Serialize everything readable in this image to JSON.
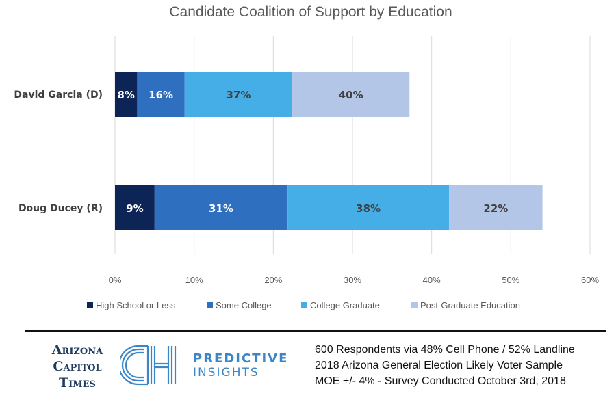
{
  "chart_data": {
    "type": "bar",
    "orientation": "horizontal",
    "stacked": true,
    "title": "Candidate Coalition of Support by Education",
    "categories": [
      "David Garcia (D)",
      "Doug Ducey (R)"
    ],
    "series": [
      {
        "name": "High School or Less",
        "values": [
          2.8,
          5.0
        ],
        "labels": [
          "8%",
          "9%"
        ],
        "color": "#0d2457"
      },
      {
        "name": "Some College",
        "values": [
          6.0,
          16.8
        ],
        "labels": [
          "16%",
          "31%"
        ],
        "color": "#2e6fc0"
      },
      {
        "name": "College Graduate",
        "values": [
          13.6,
          20.4
        ],
        "labels": [
          "37%",
          "38%"
        ],
        "color": "#45aee6"
      },
      {
        "name": "Post-Graduate Education",
        "values": [
          14.8,
          11.8
        ],
        "labels": [
          "40%",
          "22%"
        ],
        "color": "#b4c6e7"
      }
    ],
    "xlim": [
      0,
      60
    ],
    "xticks": [
      "0%",
      "10%",
      "20%",
      "30%",
      "40%",
      "50%",
      "60%"
    ],
    "grid": "vertical",
    "legend_position": "bottom"
  },
  "footer": {
    "publisher_logo_lines": [
      "Arizona",
      "Capitol",
      "Times"
    ],
    "partner_logo_lines": [
      "PREDICTIVE",
      "INSIGHTS"
    ],
    "notes": [
      "600 Respondents via 48% Cell Phone / 52% Landline",
      "2018 Arizona General Election Likely Voter Sample",
      "MOE +/- 4% - Survey Conducted October 3rd, 2018"
    ]
  }
}
